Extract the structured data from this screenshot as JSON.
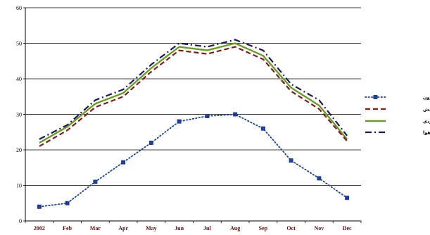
{
  "chart_data": {
    "type": "line",
    "categories": [
      "2002",
      "Feb",
      "Mar",
      "Apr",
      "May",
      "Jun",
      "Jul",
      "Aug",
      "Sep",
      "Oct",
      "Nov",
      "Dec"
    ],
    "ylim": [
      0,
      60
    ],
    "yticks": [
      0,
      10,
      20,
      30,
      40,
      50,
      60
    ],
    "grid": "horizontal",
    "legend_position": "right",
    "series": [
      {
        "name": "دمای خشک بیرون",
        "values": [
          4,
          5,
          11,
          16.5,
          22,
          28,
          29.5,
          30,
          26,
          17,
          12,
          6.5
        ],
        "color": "#1f3f8f",
        "style": "dotted-square-markers"
      },
      {
        "name": "دمای تابش",
        "values": [
          21,
          25.5,
          32,
          35,
          42,
          48,
          47,
          49,
          45.5,
          36.5,
          31.5,
          22.5
        ],
        "color": "#7b1f1f",
        "style": "dashed"
      },
      {
        "name": "دمای عملکردی",
        "values": [
          22,
          26.5,
          33,
          36,
          43,
          49,
          48,
          50,
          46.5,
          37.5,
          32.5,
          23
        ],
        "color": "#6c9a2e",
        "style": "solid"
      },
      {
        "name": "دمای هوا",
        "values": [
          23,
          27,
          34,
          37,
          44,
          50,
          49,
          51,
          48,
          38.5,
          34,
          24
        ],
        "color": "#1a1a50",
        "style": "dash-dot"
      }
    ]
  }
}
